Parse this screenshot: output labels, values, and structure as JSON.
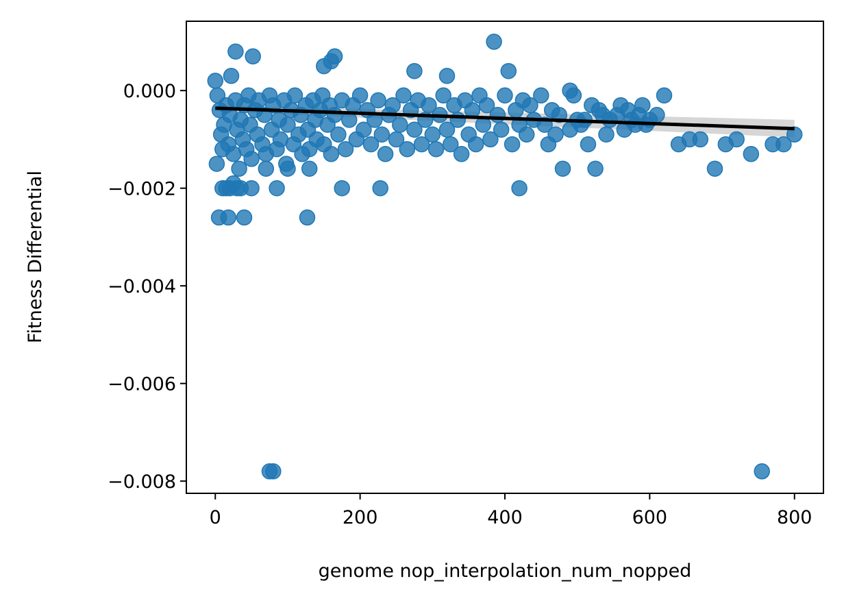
{
  "chart_data": {
    "type": "scatter",
    "title": "",
    "xlabel": "genome nop_interpolation_num_nopped",
    "ylabel": "Fitness Differential",
    "xlim": [
      -40,
      840
    ],
    "ylim": [
      -0.00825,
      0.00142
    ],
    "xticks": [
      0,
      200,
      400,
      600,
      800
    ],
    "xtick_labels": [
      "0",
      "200",
      "400",
      "600",
      "800"
    ],
    "yticks": [
      0.0,
      -0.002,
      -0.004,
      -0.006,
      -0.008
    ],
    "ytick_labels": [
      "0.000",
      "−0.002",
      "−0.004",
      "−0.006",
      "−0.008"
    ],
    "grid": false,
    "colors": {
      "points": "#1f77b4",
      "fit_line": "#000000",
      "ci_band": "#c8c8c8"
    },
    "regression": {
      "x": [
        0,
        800
      ],
      "y": [
        -0.00036,
        -0.00078
      ],
      "ci_upper": [
        -0.0003,
        -0.0006
      ],
      "ci_lower": [
        -0.00042,
        -0.00096
      ]
    },
    "series": [
      {
        "points": [
          [
            0,
            0.0002
          ],
          [
            3,
            -0.0001
          ],
          [
            6,
            -0.0004
          ],
          [
            8,
            -0.0009
          ],
          [
            2,
            -0.0015
          ],
          [
            10,
            -0.0012
          ],
          [
            12,
            -0.0007
          ],
          [
            15,
            -0.0003
          ],
          [
            18,
            -0.0011
          ],
          [
            20,
            -0.0005
          ],
          [
            22,
            0.0003
          ],
          [
            25,
            -0.0013
          ],
          [
            28,
            -0.0002
          ],
          [
            30,
            -0.0008
          ],
          [
            33,
            -0.0016
          ],
          [
            35,
            -0.0006
          ],
          [
            38,
            -0.001
          ],
          [
            40,
            -0.0003
          ],
          [
            43,
            -0.0012
          ],
          [
            46,
            -0.0001
          ],
          [
            48,
            -0.0007
          ],
          [
            50,
            -0.0014
          ],
          [
            55,
            -0.0004
          ],
          [
            58,
            -0.0009
          ],
          [
            60,
            -0.0002
          ],
          [
            65,
            -0.0011
          ],
          [
            68,
            -0.0005
          ],
          [
            70,
            -0.0013
          ],
          [
            75,
            -0.0001
          ],
          [
            78,
            -0.0008
          ],
          [
            80,
            -0.0003
          ],
          [
            85,
            -0.0012
          ],
          [
            88,
            -0.0006
          ],
          [
            90,
            -0.001
          ],
          [
            95,
            -0.0002
          ],
          [
            98,
            -0.0015
          ],
          [
            100,
            -0.0007
          ],
          [
            105,
            -0.0004
          ],
          [
            108,
            -0.0011
          ],
          [
            110,
            -0.0001
          ],
          [
            115,
            -0.0009
          ],
          [
            118,
            -0.0005
          ],
          [
            120,
            -0.0013
          ],
          [
            125,
            -0.0003
          ],
          [
            128,
            -0.0008
          ],
          [
            130,
            -0.0012
          ],
          [
            135,
            -0.0002
          ],
          [
            138,
            -0.0006
          ],
          [
            140,
            -0.001
          ],
          [
            145,
            -0.0004
          ],
          [
            148,
            -0.0001
          ],
          [
            150,
            -0.0011
          ],
          [
            155,
            -0.0007
          ],
          [
            158,
            -0.0003
          ],
          [
            160,
            -0.0013
          ],
          [
            165,
            -0.0005
          ],
          [
            170,
            -0.0009
          ],
          [
            175,
            -0.0002
          ],
          [
            180,
            -0.0012
          ],
          [
            185,
            -0.0006
          ],
          [
            190,
            -0.0003
          ],
          [
            195,
            -0.001
          ],
          [
            200,
            -0.0001
          ],
          [
            205,
            -0.0008
          ],
          [
            210,
            -0.0004
          ],
          [
            215,
            -0.0011
          ],
          [
            220,
            -0.0006
          ],
          [
            225,
            -0.0002
          ],
          [
            230,
            -0.0009
          ],
          [
            235,
            -0.0013
          ],
          [
            240,
            -0.0005
          ],
          [
            245,
            -0.0003
          ],
          [
            250,
            -0.001
          ],
          [
            255,
            -0.0007
          ],
          [
            260,
            -0.0001
          ],
          [
            265,
            -0.0012
          ],
          [
            270,
            -0.0004
          ],
          [
            275,
            -0.0008
          ],
          [
            280,
            -0.0002
          ],
          [
            285,
            -0.0011
          ],
          [
            290,
            -0.0006
          ],
          [
            295,
            -0.0003
          ],
          [
            300,
            -0.0009
          ],
          [
            305,
            -0.0012
          ],
          [
            310,
            -0.0005
          ],
          [
            315,
            -0.0001
          ],
          [
            320,
            -0.0008
          ],
          [
            325,
            -0.0011
          ],
          [
            330,
            -0.0003
          ],
          [
            335,
            -0.0006
          ],
          [
            340,
            -0.0013
          ],
          [
            345,
            -0.0002
          ],
          [
            350,
            -0.0009
          ],
          [
            355,
            -0.0004
          ],
          [
            360,
            -0.0011
          ],
          [
            365,
            -0.0001
          ],
          [
            370,
            -0.0007
          ],
          [
            375,
            -0.0003
          ],
          [
            380,
            -0.001
          ],
          [
            390,
            -0.0005
          ],
          [
            395,
            -0.0008
          ],
          [
            400,
            -0.0001
          ],
          [
            410,
            -0.0011
          ],
          [
            415,
            -0.0004
          ],
          [
            420,
            -0.0007
          ],
          [
            425,
            -0.0002
          ],
          [
            430,
            -0.0009
          ],
          [
            435,
            -0.0003
          ],
          [
            440,
            -0.0006
          ],
          [
            450,
            -0.0001
          ],
          [
            455,
            -0.0007
          ],
          [
            460,
            -0.0011
          ],
          [
            465,
            -0.0004
          ],
          [
            470,
            -0.0009
          ],
          [
            475,
            -0.0005
          ],
          [
            490,
            -0.0008
          ],
          [
            495,
            -0.0001
          ],
          [
            500,
            -0.0006
          ],
          [
            505,
            -0.0007
          ],
          [
            510,
            -0.0006
          ],
          [
            515,
            -0.0011
          ],
          [
            520,
            -0.0003
          ],
          [
            530,
            -0.0004
          ],
          [
            535,
            -0.0005
          ],
          [
            540,
            -0.0009
          ],
          [
            545,
            -0.0006
          ],
          [
            555,
            -0.0005
          ],
          [
            560,
            -0.0003
          ],
          [
            565,
            -0.0008
          ],
          [
            570,
            -0.0004
          ],
          [
            575,
            -0.0006
          ],
          [
            580,
            -0.0007
          ],
          [
            585,
            -0.0005
          ],
          [
            590,
            -0.0003
          ],
          [
            595,
            -0.0007
          ],
          [
            600,
            -0.0006
          ],
          [
            610,
            -0.0005
          ],
          [
            620,
            -0.0001
          ],
          [
            640,
            -0.0011
          ],
          [
            655,
            -0.001
          ],
          [
            670,
            -0.001
          ],
          [
            690,
            -0.0016
          ],
          [
            705,
            -0.0011
          ],
          [
            720,
            -0.001
          ],
          [
            740,
            -0.0013
          ],
          [
            770,
            -0.0011
          ],
          [
            785,
            -0.0011
          ],
          [
            800,
            -0.0009
          ],
          [
            28,
            0.0008
          ],
          [
            52,
            0.0007
          ],
          [
            150,
            0.0005
          ],
          [
            160,
            0.0006
          ],
          [
            165,
            0.0007
          ],
          [
            275,
            0.0004
          ],
          [
            320,
            0.0003
          ],
          [
            385,
            0.001
          ],
          [
            405,
            0.0004
          ],
          [
            490,
            0.0
          ],
          [
            10,
            -0.002
          ],
          [
            15,
            -0.002
          ],
          [
            20,
            -0.002
          ],
          [
            25,
            -0.0019
          ],
          [
            30,
            -0.002
          ],
          [
            35,
            -0.002
          ],
          [
            50,
            -0.002
          ],
          [
            85,
            -0.002
          ],
          [
            175,
            -0.002
          ],
          [
            228,
            -0.002
          ],
          [
            420,
            -0.002
          ],
          [
            480,
            -0.0016
          ],
          [
            525,
            -0.0016
          ],
          [
            130,
            -0.0016
          ],
          [
            70,
            -0.0016
          ],
          [
            100,
            -0.0016
          ],
          [
            5,
            -0.0026
          ],
          [
            18,
            -0.0026
          ],
          [
            40,
            -0.0026
          ],
          [
            127,
            -0.0026
          ],
          [
            75,
            -0.0078
          ],
          [
            80,
            -0.0078
          ],
          [
            755,
            -0.0078
          ]
        ]
      }
    ]
  }
}
